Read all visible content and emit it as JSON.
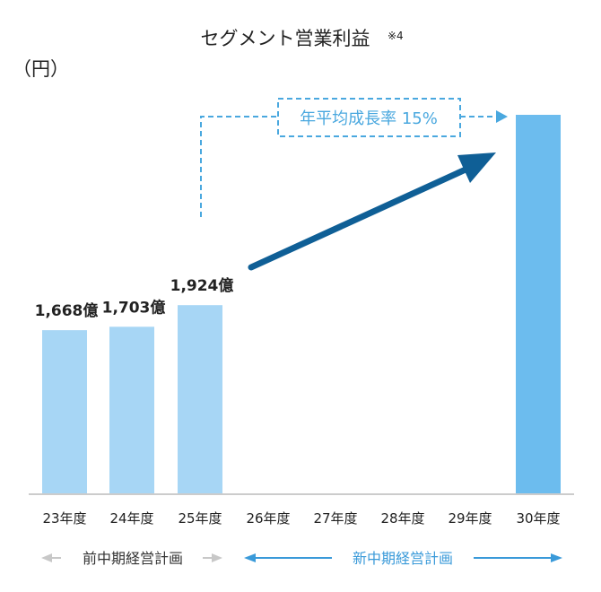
{
  "chart_data": {
    "type": "bar",
    "title": "セグメント営業利益",
    "title_note": "※4",
    "unit_label": "（円）",
    "categories": [
      "23年度",
      "24年度",
      "25年度",
      "26年度",
      "27年度",
      "28年度",
      "29年度",
      "30年度"
    ],
    "values": [
      1668,
      1703,
      1924,
      null,
      null,
      null,
      null,
      3870
    ],
    "data_labels": [
      "1,668億",
      "1,703億",
      "1,924億",
      "",
      "",
      "",
      "",
      ""
    ],
    "annotation": "年平均成長率 15%",
    "periods": [
      {
        "label": "前中期経営計画",
        "from": "23年度",
        "to": "25年度",
        "color": "#c8c8c8"
      },
      {
        "label": "新中期経営計画",
        "from": "26年度",
        "to": "30年度",
        "color": "#3a9ad9"
      }
    ],
    "colors": {
      "past_bar": "#a7d6f5",
      "target_bar": "#6cbcee",
      "arrow": "#0f5f96",
      "annotation": "#4aa8df"
    },
    "ylim": [
      0,
      4000
    ],
    "grid": false
  }
}
